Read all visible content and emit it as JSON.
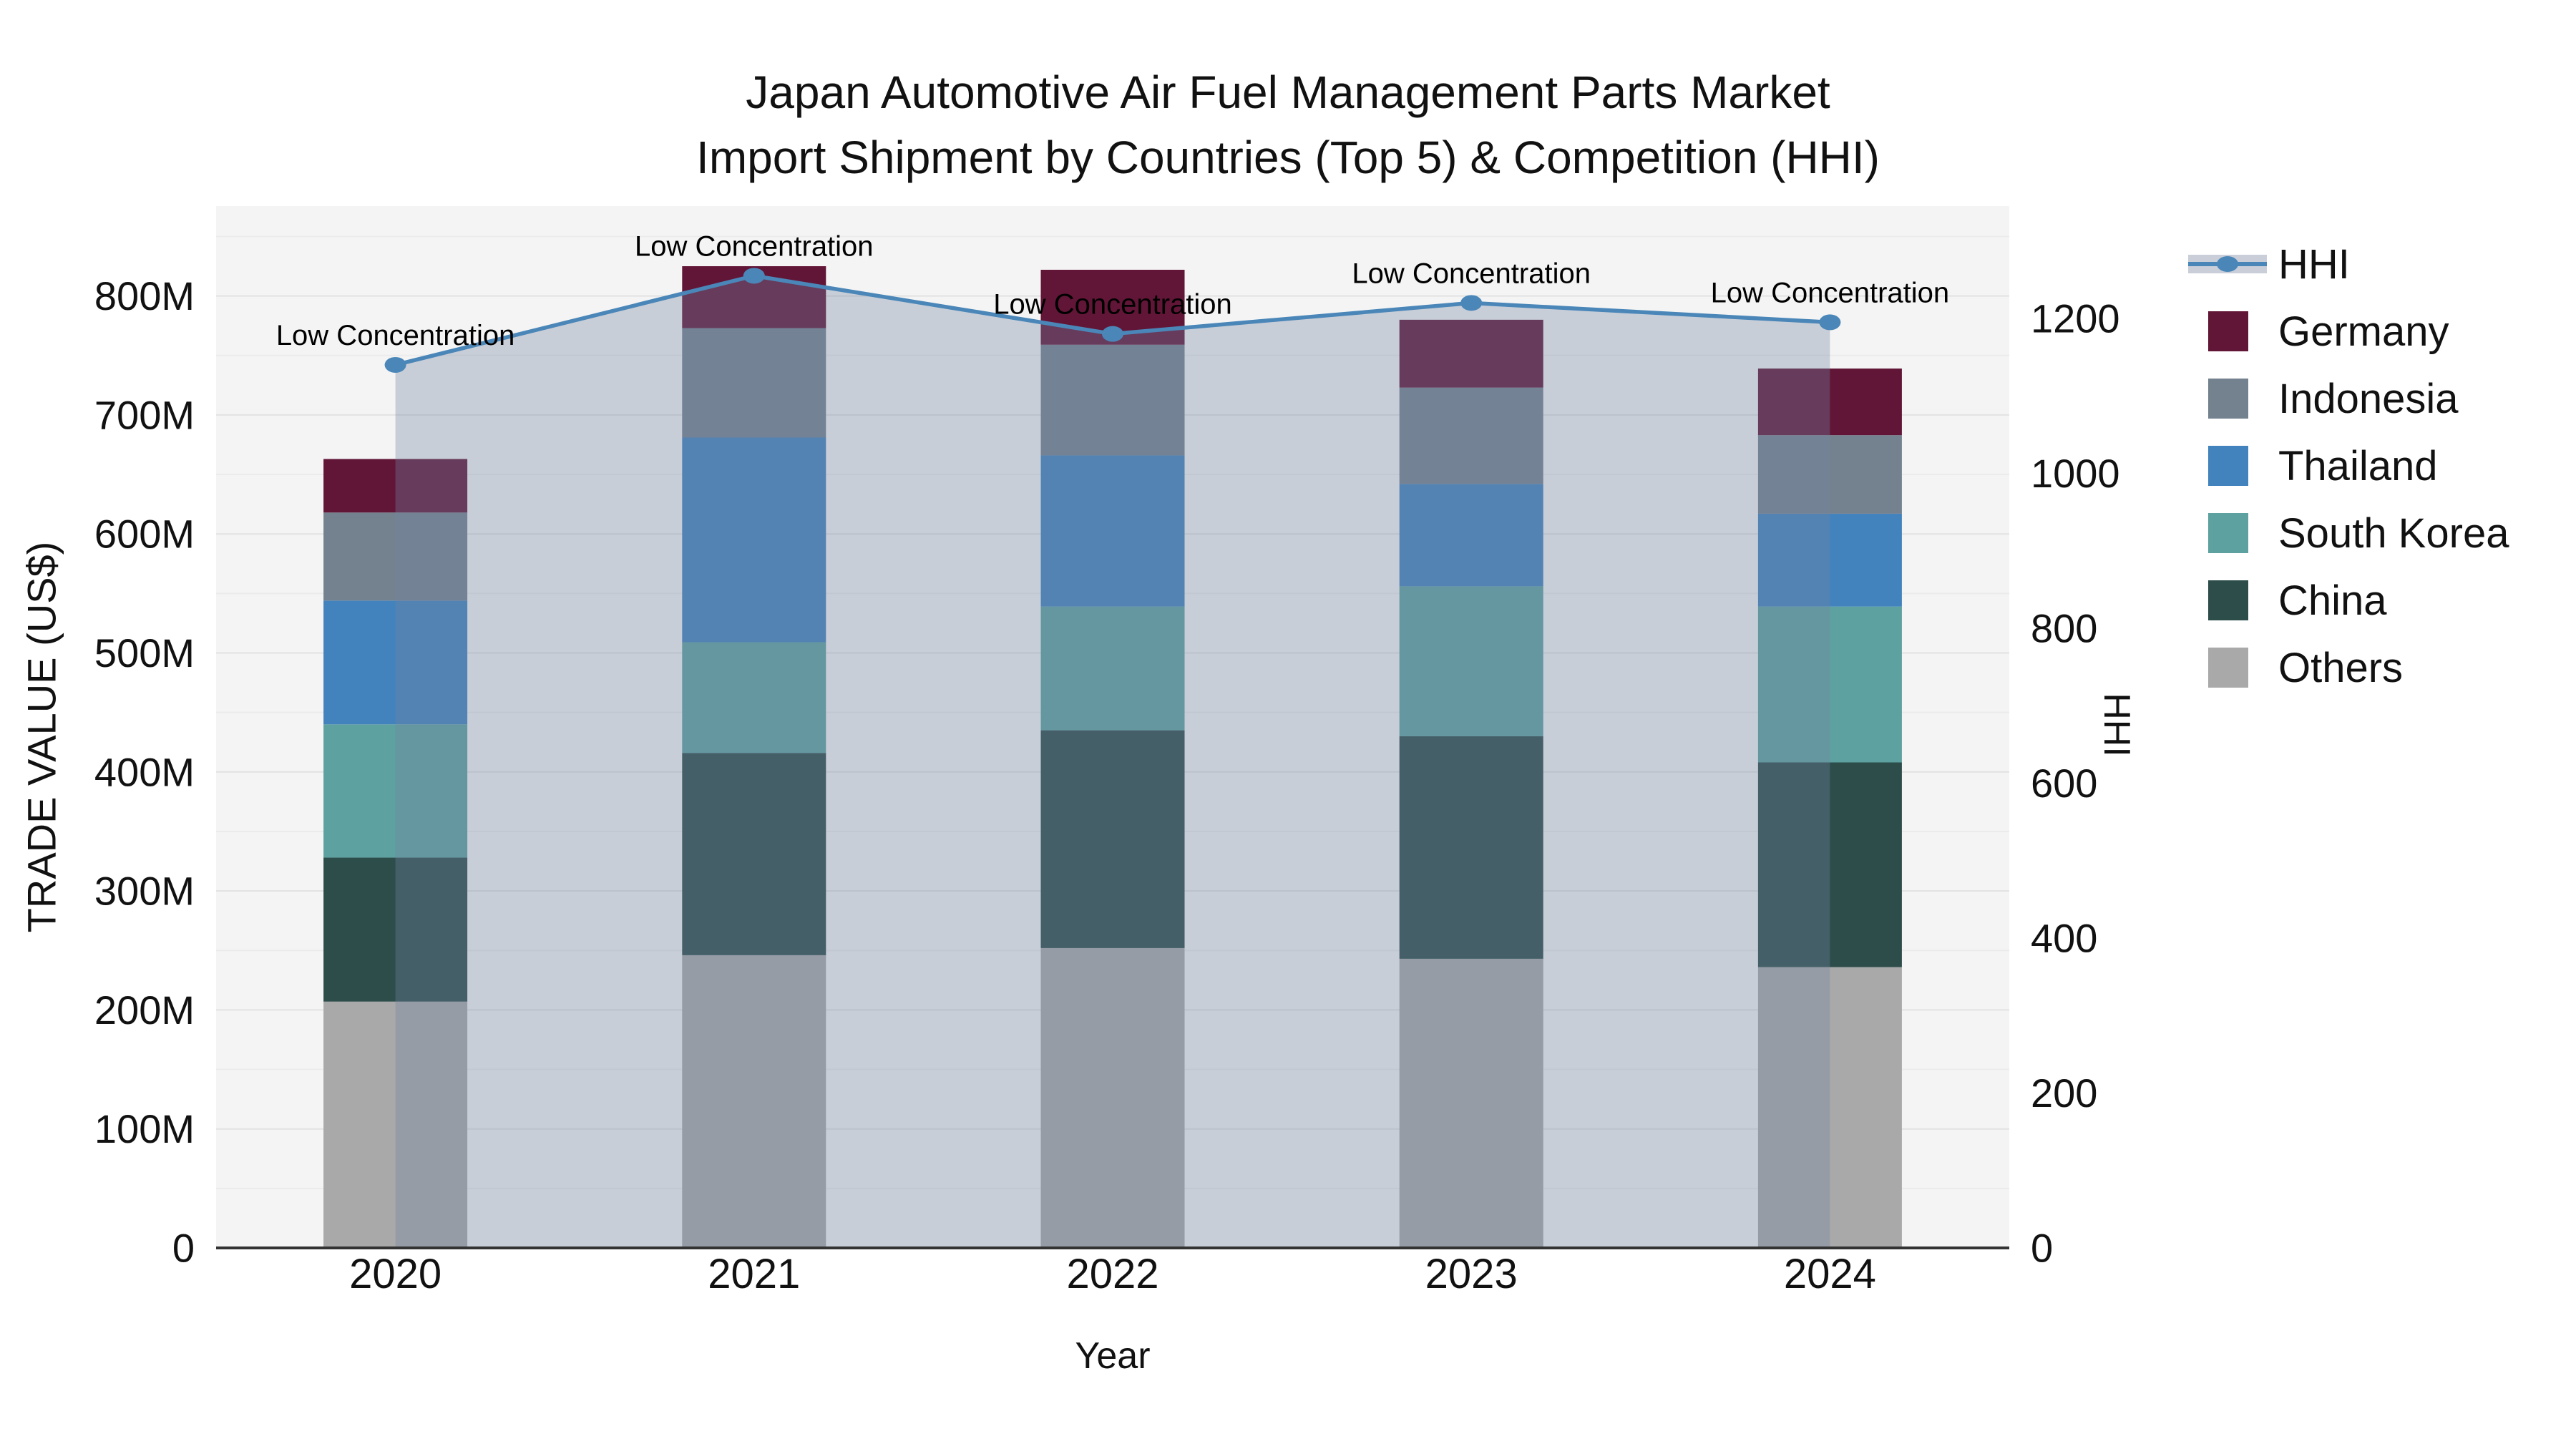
{
  "title": {
    "line1": "Japan Automotive Air Fuel Management Parts Market",
    "line2": "Import Shipment by Countries (Top 5) & Competition (HHI)"
  },
  "axes": {
    "y_left": {
      "title": "TRADE VALUE (US$)",
      "tick_labels": [
        "0",
        "100M",
        "200M",
        "300M",
        "400M",
        "500M",
        "600M",
        "700M",
        "800M"
      ],
      "tick_values": [
        0,
        100,
        200,
        300,
        400,
        500,
        600,
        700,
        800
      ],
      "range": [
        0,
        875
      ]
    },
    "y_right": {
      "title": "HHI",
      "tick_labels": [
        "0",
        "200",
        "400",
        "600",
        "800",
        "1000",
        "1200"
      ],
      "tick_values": [
        0,
        200,
        400,
        600,
        800,
        1000,
        1200
      ],
      "range": [
        0,
        1345
      ]
    },
    "x": {
      "title": "Year",
      "tick_labels": [
        "2020",
        "2021",
        "2022",
        "2023",
        "2024"
      ]
    }
  },
  "legend": [
    {
      "label": "HHI",
      "type": "line",
      "color": "#4a86b8"
    },
    {
      "label": "Germany",
      "type": "swatch",
      "color": "#621637"
    },
    {
      "label": "Indonesia",
      "type": "swatch",
      "color": "#74828f"
    },
    {
      "label": "Thailand",
      "type": "swatch",
      "color": "#4383bd"
    },
    {
      "label": "South Korea",
      "type": "swatch",
      "color": "#5da1a0"
    },
    {
      "label": "China",
      "type": "swatch",
      "color": "#2d4d4b"
    },
    {
      "label": "Others",
      "type": "swatch",
      "color": "#a9a9a9"
    }
  ],
  "chart_data": {
    "type": "bar",
    "subtype": "stacked-bar-with-line",
    "categories": [
      "2020",
      "2021",
      "2022",
      "2023",
      "2024"
    ],
    "value_unit": "US$ millions",
    "series": [
      {
        "name": "Others",
        "color": "#a9a9a9",
        "values": [
          207,
          246,
          252,
          243,
          236
        ]
      },
      {
        "name": "China",
        "color": "#2d4d4b",
        "values": [
          121,
          170,
          183,
          187,
          172
        ]
      },
      {
        "name": "South Korea",
        "color": "#5da1a0",
        "values": [
          112,
          93,
          104,
          126,
          131
        ]
      },
      {
        "name": "Thailand",
        "color": "#4383bd",
        "values": [
          104,
          172,
          127,
          86,
          78
        ]
      },
      {
        "name": "Indonesia",
        "color": "#74828f",
        "values": [
          74,
          92,
          93,
          81,
          66
        ]
      },
      {
        "name": "Germany",
        "color": "#621637",
        "values": [
          45,
          52,
          63,
          57,
          56
        ]
      }
    ],
    "line_series": {
      "name": "HHI",
      "axis": "right",
      "color": "#4a86b8",
      "band_fill": "rgba(114,132,161,0.34)",
      "values": [
        1140,
        1255,
        1180,
        1220,
        1195
      ]
    },
    "annotations": [
      {
        "x": "2020",
        "text": "Low Concentration"
      },
      {
        "x": "2021",
        "text": "Low Concentration"
      },
      {
        "x": "2022",
        "text": "Low Concentration"
      },
      {
        "x": "2023",
        "text": "Low Concentration"
      },
      {
        "x": "2024",
        "text": "Low Concentration"
      }
    ],
    "layout": {
      "plot_bg": "#f4f4f4",
      "grid_major": "#e2e2e2",
      "grid_minor": "#ebebeb",
      "axis_line": "#333333",
      "legend_position": "right",
      "grid": "on"
    }
  }
}
